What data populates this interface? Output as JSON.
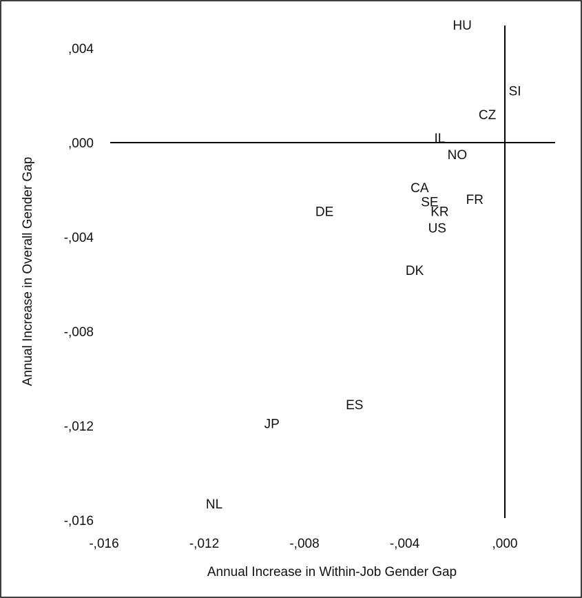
{
  "chart_data": {
    "type": "scatter",
    "xlabel": "Annual Increase in Within-Job Gender Gap",
    "ylabel": "Annual Increase in Overall Gender Gap",
    "xlim": [
      -0.016,
      0.0
    ],
    "ylim": [
      -0.016,
      0.004
    ],
    "x_ticks": [
      {
        "value": -0.016,
        "label": "-,016"
      },
      {
        "value": -0.012,
        "label": "-,012"
      },
      {
        "value": -0.008,
        "label": "-,008"
      },
      {
        "value": -0.004,
        "label": "-,004"
      },
      {
        "value": 0.0,
        "label": ",000"
      }
    ],
    "y_ticks": [
      {
        "value": 0.004,
        "label": ",004"
      },
      {
        "value": 0.0,
        "label": ",000"
      },
      {
        "value": -0.004,
        "label": "-,004"
      },
      {
        "value": -0.008,
        "label": "-,008"
      },
      {
        "value": -0.012,
        "label": "-,012"
      },
      {
        "value": -0.016,
        "label": "-,016"
      }
    ],
    "grid": false,
    "legend": "none",
    "points": [
      {
        "label": "HU",
        "x": -0.0017,
        "y": 0.005
      },
      {
        "label": "SI",
        "x": 0.0004,
        "y": 0.0022
      },
      {
        "label": "CZ",
        "x": -0.0007,
        "y": 0.0012
      },
      {
        "label": "IL",
        "x": -0.0026,
        "y": 0.0002
      },
      {
        "label": "NO",
        "x": -0.0019,
        "y": -0.0005
      },
      {
        "label": "CA",
        "x": -0.0034,
        "y": -0.0019
      },
      {
        "label": "SE",
        "x": -0.003,
        "y": -0.0025
      },
      {
        "label": "KR",
        "x": -0.0026,
        "y": -0.0029
      },
      {
        "label": "FR",
        "x": -0.0012,
        "y": -0.0024
      },
      {
        "label": "DE",
        "x": -0.0072,
        "y": -0.0029
      },
      {
        "label": "US",
        "x": -0.0027,
        "y": -0.0036
      },
      {
        "label": "DK",
        "x": -0.0036,
        "y": -0.0054
      },
      {
        "label": "ES",
        "x": -0.006,
        "y": -0.0111
      },
      {
        "label": "JP",
        "x": -0.0093,
        "y": -0.0119
      },
      {
        "label": "NL",
        "x": -0.0116,
        "y": -0.0153
      }
    ]
  }
}
